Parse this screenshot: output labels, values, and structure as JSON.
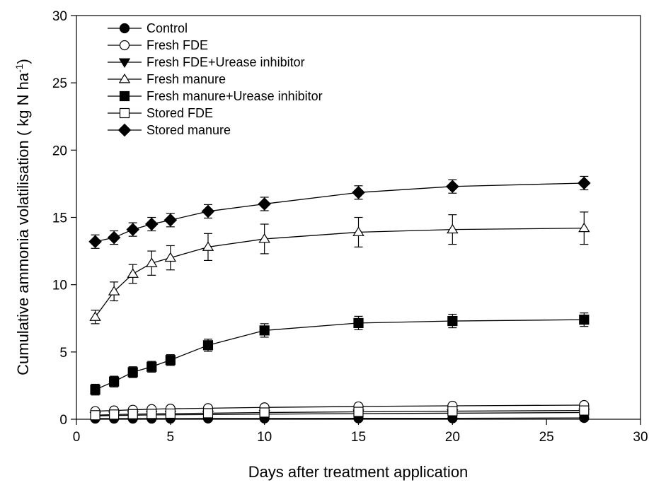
{
  "chart_data": {
    "type": "line",
    "xlabel": "Days after treatment application",
    "ylabel": {
      "main": "Cumulative ammonia volatilisation ( kg N ha",
      "superscript": "-1",
      "close": ")"
    },
    "xlim": [
      0,
      30
    ],
    "ylim": [
      0,
      30
    ],
    "xticks": [
      "0",
      "5",
      "10",
      "15",
      "20",
      "25",
      "30"
    ],
    "yticks": [
      "0",
      "5",
      "10",
      "15",
      "20",
      "25",
      "30"
    ],
    "grid": false,
    "legend_position": "top-left",
    "x": [
      1,
      2,
      3,
      4,
      5,
      7,
      10,
      15,
      20,
      27
    ],
    "series": [
      {
        "name": "Control",
        "marker": "circle-filled",
        "values": [
          0.05,
          0.05,
          0.05,
          0.05,
          0.05,
          0.06,
          0.06,
          0.07,
          0.07,
          0.1
        ],
        "errors": [
          0.05,
          0.05,
          0.05,
          0.05,
          0.05,
          0.05,
          0.05,
          0.05,
          0.05,
          0.05
        ]
      },
      {
        "name": "Fresh FDE",
        "marker": "circle-open",
        "values": [
          0.6,
          0.65,
          0.7,
          0.75,
          0.78,
          0.82,
          0.88,
          0.95,
          1.0,
          1.05
        ],
        "errors": [
          0.1,
          0.1,
          0.1,
          0.1,
          0.1,
          0.1,
          0.1,
          0.1,
          0.1,
          0.1
        ]
      },
      {
        "name": "Fresh FDE+Urease inhibitor",
        "marker": "triangle-down-filled",
        "values": [
          0.25,
          0.28,
          0.3,
          0.32,
          0.33,
          0.35,
          0.38,
          0.42,
          0.45,
          0.5
        ],
        "errors": [
          0.08,
          0.08,
          0.08,
          0.08,
          0.08,
          0.08,
          0.08,
          0.08,
          0.08,
          0.08
        ]
      },
      {
        "name": "Fresh manure",
        "marker": "triangle-up-open",
        "values": [
          7.6,
          9.5,
          10.8,
          11.6,
          12.0,
          12.8,
          13.4,
          13.9,
          14.1,
          14.2
        ],
        "errors": [
          0.5,
          0.7,
          0.7,
          0.9,
          0.9,
          1.0,
          1.1,
          1.1,
          1.1,
          1.2
        ]
      },
      {
        "name": "Fresh manure+Urease inhibitor",
        "marker": "square-filled",
        "values": [
          2.2,
          2.8,
          3.5,
          3.9,
          4.4,
          5.5,
          6.6,
          7.15,
          7.3,
          7.4
        ],
        "errors": [
          0.4,
          0.4,
          0.4,
          0.4,
          0.4,
          0.45,
          0.5,
          0.5,
          0.5,
          0.5
        ]
      },
      {
        "name": "Stored FDE",
        "marker": "square-open",
        "values": [
          0.3,
          0.35,
          0.38,
          0.4,
          0.42,
          0.45,
          0.5,
          0.55,
          0.6,
          0.65
        ],
        "errors": [
          0.1,
          0.1,
          0.1,
          0.1,
          0.1,
          0.1,
          0.1,
          0.1,
          0.1,
          0.1
        ]
      },
      {
        "name": "Stored manure",
        "marker": "diamond-filled",
        "values": [
          13.2,
          13.5,
          14.1,
          14.5,
          14.8,
          15.45,
          16.0,
          16.85,
          17.3,
          17.55
        ],
        "errors": [
          0.5,
          0.5,
          0.5,
          0.5,
          0.5,
          0.5,
          0.5,
          0.5,
          0.5,
          0.5
        ]
      }
    ]
  }
}
